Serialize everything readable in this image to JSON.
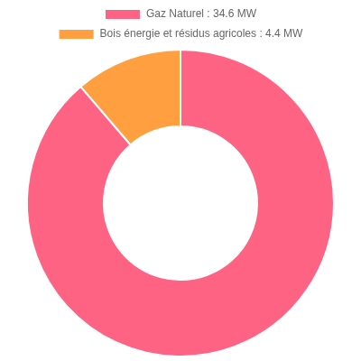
{
  "chart_data": {
    "type": "doughnut",
    "categories": [
      "Gaz Naturel : 34.6 MW",
      "Bois énergie et résidus agricoles : 4.4 MW"
    ],
    "values": [
      34.6,
      4.4
    ],
    "colors": [
      "#ff6384",
      "#ff9f40"
    ],
    "legend": "top"
  }
}
